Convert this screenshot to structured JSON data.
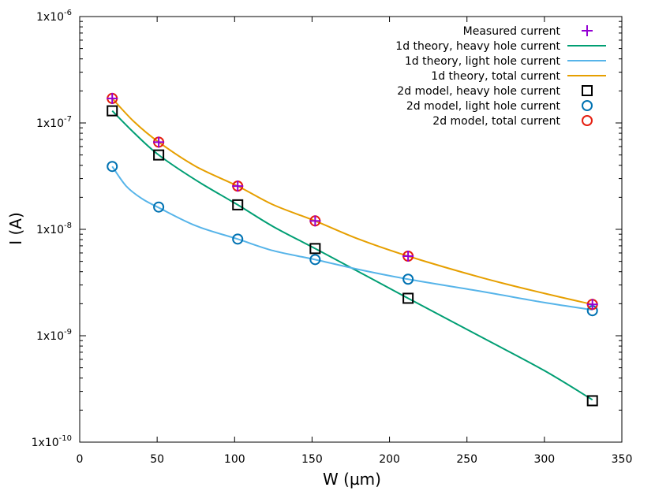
{
  "chart_data": {
    "type": "line",
    "title": "",
    "xlabel": "W  (µm)",
    "ylabel": "I (A)",
    "xlim": [
      0,
      350
    ],
    "ylim": [
      1e-10,
      1e-06
    ],
    "yscale": "log",
    "grid": false,
    "legend_position": "top-right",
    "x_ticks": [
      {
        "value": 0,
        "label": "0"
      },
      {
        "value": 50,
        "label": "50"
      },
      {
        "value": 100,
        "label": "100"
      },
      {
        "value": 150,
        "label": "150"
      },
      {
        "value": 200,
        "label": "200"
      },
      {
        "value": 250,
        "label": "250"
      },
      {
        "value": 300,
        "label": "300"
      },
      {
        "value": 350,
        "label": "350"
      }
    ],
    "y_ticks": [
      {
        "value": 1e-10,
        "mantissa": "1x10",
        "exponent": "-10"
      },
      {
        "value": 1e-09,
        "mantissa": "1x10",
        "exponent": "-9"
      },
      {
        "value": 1e-08,
        "mantissa": "1x10",
        "exponent": "-8"
      },
      {
        "value": 1e-07,
        "mantissa": "1x10",
        "exponent": "-7"
      },
      {
        "value": 1e-06,
        "mantissa": "1x10",
        "exponent": "-6"
      }
    ],
    "series": [
      {
        "name": "Measured current",
        "style": "plus",
        "color": "#9400d3",
        "x": [
          21,
          51,
          102,
          152,
          212,
          331
        ],
        "y": [
          1.7e-07,
          6.6e-08,
          2.55e-08,
          1.2e-08,
          5.6e-09,
          1.97e-09
        ]
      },
      {
        "name": "1d theory, heavy hole current",
        "style": "line",
        "color": "#009e73",
        "x": [
          21,
          35,
          51,
          75,
          102,
          125,
          152,
          180,
          212,
          260,
          300,
          331
        ],
        "y": [
          1.3e-07,
          8.1e-08,
          5e-08,
          2.9e-08,
          1.7e-08,
          1.06e-08,
          6.6e-09,
          4e-09,
          2.25e-09,
          9.6e-10,
          4.7e-10,
          2.5e-10
        ]
      },
      {
        "name": "1d theory, light hole current",
        "style": "line",
        "color": "#56b4e9",
        "x": [
          21,
          30,
          40,
          51,
          75,
          102,
          125,
          152,
          180,
          212,
          260,
          300,
          331
        ],
        "y": [
          3.9e-08,
          2.55e-08,
          1.95e-08,
          1.6e-08,
          1.08e-08,
          8.1e-09,
          6.3e-09,
          5.2e-09,
          4.2e-09,
          3.4e-09,
          2.6e-09,
          2.05e-09,
          1.75e-09
        ]
      },
      {
        "name": "1d theory, total current",
        "style": "line",
        "color": "#e69f00",
        "x": [
          21,
          35,
          51,
          75,
          102,
          125,
          152,
          180,
          212,
          260,
          300,
          331
        ],
        "y": [
          1.7e-07,
          1.03e-07,
          6.6e-08,
          3.9e-08,
          2.55e-08,
          1.7e-08,
          1.2e-08,
          8.1e-09,
          5.6e-09,
          3.5e-09,
          2.5e-09,
          1.97e-09
        ]
      },
      {
        "name": "2d model, heavy hole current",
        "style": "square",
        "color": "#000000",
        "x": [
          21,
          51,
          102,
          152,
          212,
          331
        ],
        "y": [
          1.3e-07,
          5e-08,
          1.7e-08,
          6.6e-09,
          2.25e-09,
          2.45e-10
        ]
      },
      {
        "name": "2d model, light hole current",
        "style": "circle",
        "color": "#0072b2",
        "x": [
          21,
          51,
          102,
          152,
          212,
          331
        ],
        "y": [
          3.9e-08,
          1.62e-08,
          8.1e-09,
          5.2e-09,
          3.4e-09,
          1.72e-09
        ]
      },
      {
        "name": "2d model, total current",
        "style": "circle",
        "color": "#e51e10",
        "x": [
          21,
          51,
          102,
          152,
          212,
          331
        ],
        "y": [
          1.7e-07,
          6.6e-08,
          2.55e-08,
          1.2e-08,
          5.6e-09,
          1.97e-09
        ]
      }
    ]
  }
}
